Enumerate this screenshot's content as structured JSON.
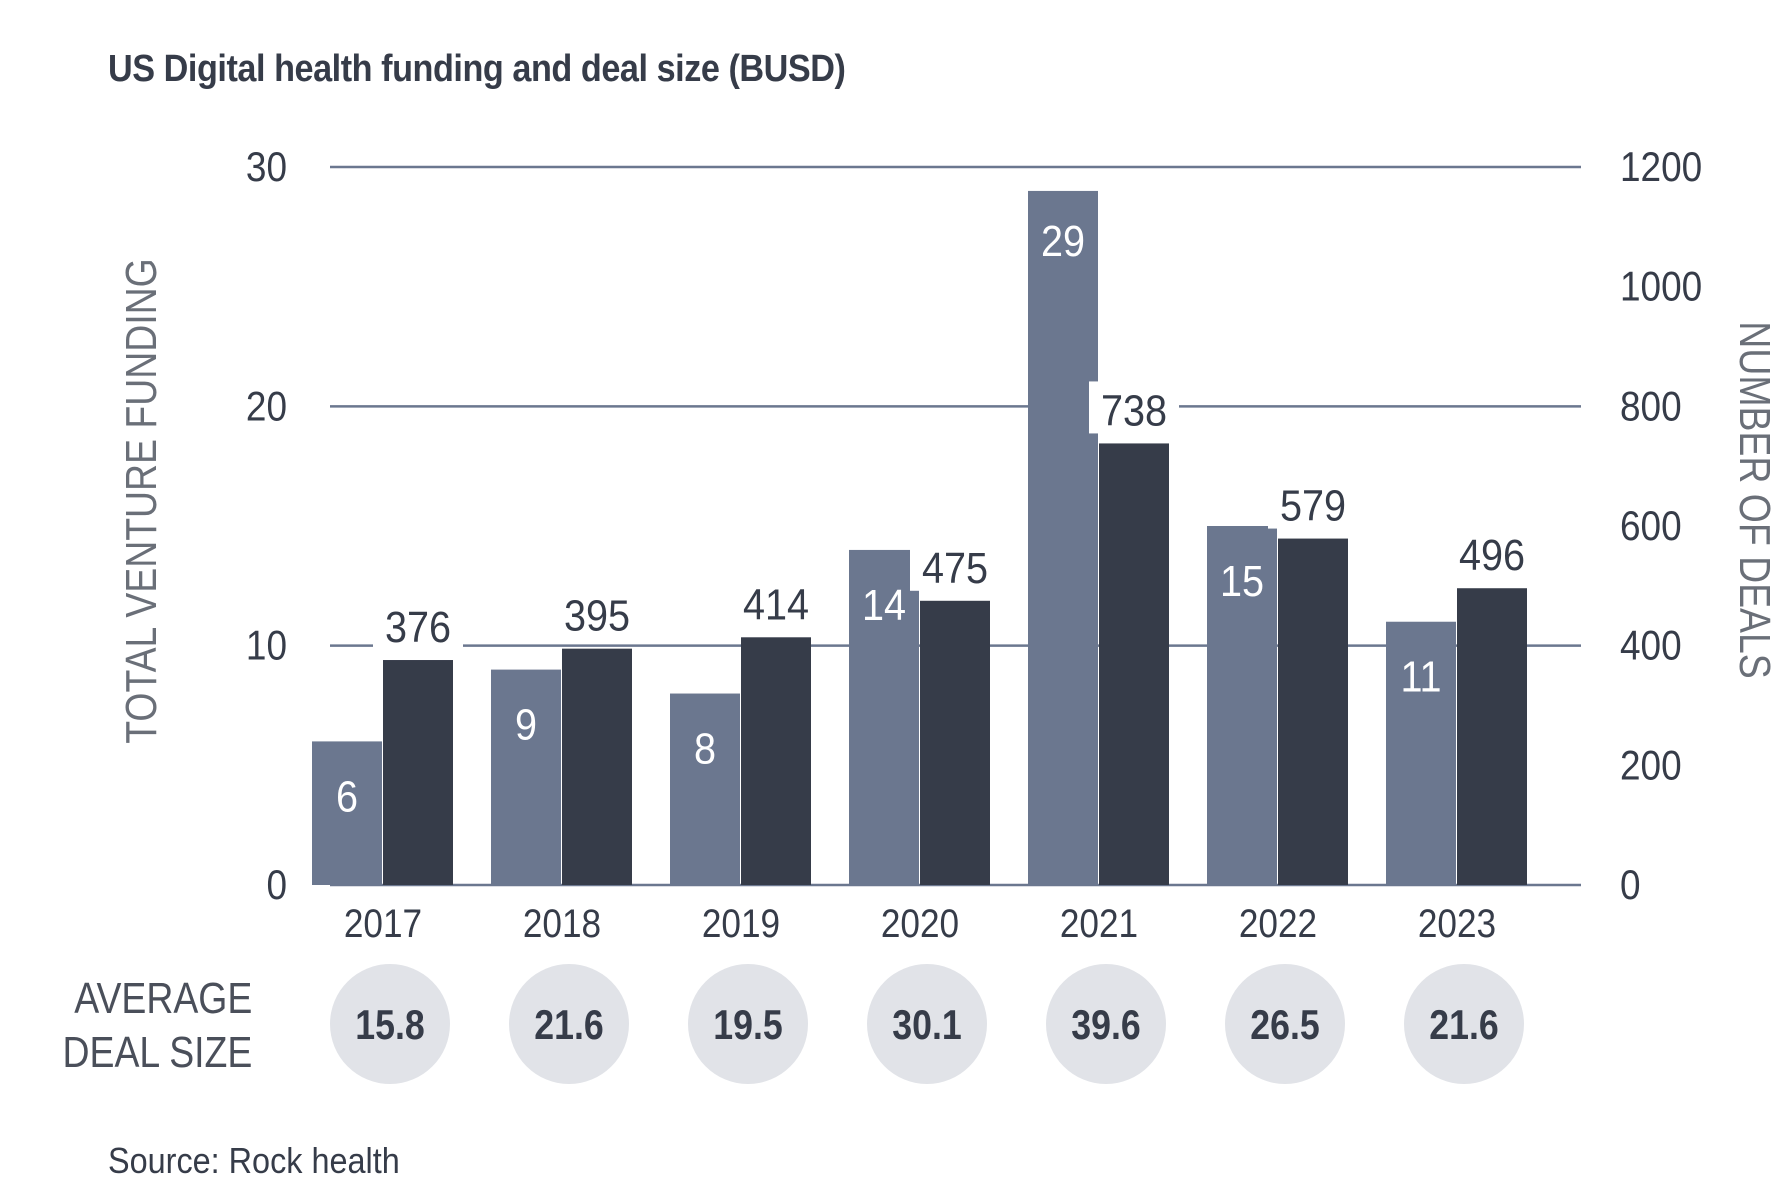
{
  "chart_data": {
    "type": "bar",
    "title": "US Digital health funding and deal size (BUSD)",
    "categories": [
      "2017",
      "2018",
      "2019",
      "2020",
      "2021",
      "2022",
      "2023"
    ],
    "series": [
      {
        "name": "Total venture funding (BUSD)",
        "axis": "left",
        "color": "#6b778f",
        "values": [
          6,
          9,
          8,
          14,
          29,
          15,
          11
        ]
      },
      {
        "name": "Number of deals",
        "axis": "right",
        "color": "#363c49",
        "values": [
          376,
          395,
          414,
          475,
          738,
          579,
          496
        ]
      }
    ],
    "ylabel": "TOTAL VENTURE FUNDING",
    "ylim": [
      0,
      30
    ],
    "yticks": [
      "0",
      "10",
      "20",
      "30"
    ],
    "y2label": "NUMBER OF DEALS",
    "y2lim": [
      0,
      1200
    ],
    "y2ticks": [
      "0",
      "200",
      "400",
      "600",
      "800",
      "1000",
      "1200"
    ],
    "grid": true,
    "average_deal_size": {
      "label_lines": [
        "AVERAGE",
        "DEAL SIZE"
      ],
      "values": [
        "15.8",
        "21.6",
        "19.5",
        "30.1",
        "39.6",
        "26.5",
        "21.6"
      ]
    },
    "source": "Source: Rock health"
  }
}
